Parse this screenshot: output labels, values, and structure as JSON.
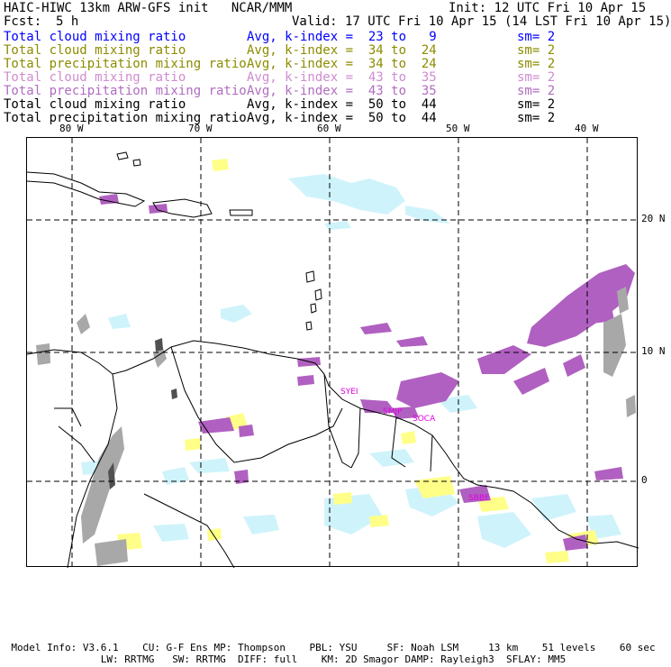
{
  "header": {
    "title": "HAIC-HIWC 13km ARW-GFS init   NCAR/MMM",
    "init": "Init: 12 UTC Fri 10 Apr 15",
    "fcst_label": "Fcst:",
    "fcst_value": "5 h",
    "valid": "Valid: 17 UTC Fri 10 Apr 15 (14 LST Fri 10 Apr 15)"
  },
  "legend": [
    {
      "field": "Total cloud mixing ratio",
      "avg": "Avg, k-index =  23 to   9",
      "sm": "sm= 2",
      "color": "#0000ff"
    },
    {
      "field": "Total cloud mixing ratio",
      "avg": "Avg, k-index =  34 to  24",
      "sm": "sm= 2",
      "color": "#8c8c00"
    },
    {
      "field": "Total precipitation mixing ratio",
      "avg": "Avg, k-index =  34 to  24",
      "sm": "sm= 2",
      "color": "#8c8c00"
    },
    {
      "field": "Total cloud mixing ratio",
      "avg": "Avg, k-index =  43 to  35",
      "sm": "sm= 2",
      "color": "#d08cd0"
    },
    {
      "field": "Total precipitation mixing ratio",
      "avg": "Avg, k-index =  43 to  35",
      "sm": "sm= 2",
      "color": "#b06cc0"
    },
    {
      "field": "Total cloud mixing ratio",
      "avg": "Avg, k-index =  50 to  44",
      "sm": "sm= 2",
      "color": "#000000"
    },
    {
      "field": "Total precipitation mixing ratio",
      "avg": "Avg, k-index =  50 to  44",
      "sm": "sm= 2",
      "color": "#000000"
    }
  ],
  "map": {
    "lon_labels": [
      "80 W",
      "70 W",
      "60 W",
      "50 W",
      "40 W"
    ],
    "lat_labels": [
      "20 N",
      "10 N",
      "0"
    ],
    "stations": [
      "SYEI",
      "SMJP",
      "SOCA",
      "SBBE"
    ],
    "colors": {
      "light_cyan": "#cff3fb",
      "yellow": "#ffff88",
      "purple": "#b060c0",
      "gray": "#a8a8a8",
      "dark_gray": "#505050",
      "station": "#e000e0"
    }
  },
  "footer": {
    "line1": "Model Info: V3.6.1    CU: G-F Ens MP: Thompson    PBL: YSU     SF: Noah LSM     13 km    51 levels    60 sec",
    "line2": "LW: RRTMG   SW: RRTMG  DIFF: full    KM: 2D Smagor DAMP: Rayleigh3  SFLAY: MM5"
  }
}
